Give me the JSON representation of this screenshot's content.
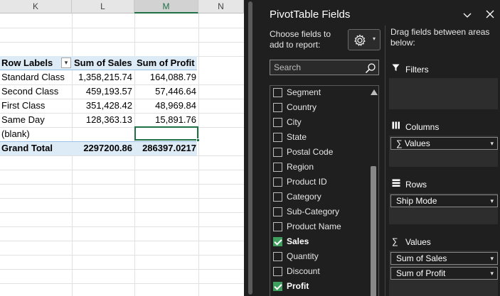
{
  "sheet": {
    "columns": [
      "K",
      "L",
      "M",
      "N"
    ],
    "selected_column": "M",
    "pivot": {
      "headers": [
        "Row Labels",
        "Sum of Sales",
        "Sum of Profit"
      ],
      "rows": [
        {
          "label": "Standard Class",
          "sales": "1,358,215.74",
          "profit": "164,088.79"
        },
        {
          "label": "Second Class",
          "sales": "459,193.57",
          "profit": "57,446.64"
        },
        {
          "label": "First Class",
          "sales": "351,428.42",
          "profit": "48,969.84"
        },
        {
          "label": "Same Day",
          "sales": "128,363.13",
          "profit": "15,891.76"
        },
        {
          "label": "(blank)",
          "sales": "",
          "profit": ""
        }
      ],
      "total": {
        "label": "Grand Total",
        "sales": "2297200.86",
        "profit": "286397.0217"
      }
    }
  },
  "pane": {
    "title": "PivotTable Fields",
    "choose_label": "Choose fields to add to report:",
    "drag_label": "Drag fields between areas below:",
    "search_placeholder": "Search",
    "fields": [
      {
        "label": "Segment",
        "checked": false
      },
      {
        "label": "Country",
        "checked": false
      },
      {
        "label": "City",
        "checked": false
      },
      {
        "label": "State",
        "checked": false
      },
      {
        "label": "Postal Code",
        "checked": false
      },
      {
        "label": "Region",
        "checked": false
      },
      {
        "label": "Product ID",
        "checked": false
      },
      {
        "label": "Category",
        "checked": false
      },
      {
        "label": "Sub-Category",
        "checked": false
      },
      {
        "label": "Product Name",
        "checked": false
      },
      {
        "label": "Sales",
        "checked": true
      },
      {
        "label": "Quantity",
        "checked": false
      },
      {
        "label": "Discount",
        "checked": false
      },
      {
        "label": "Profit",
        "checked": true
      }
    ],
    "areas": {
      "filters": {
        "label": "Filters",
        "items": []
      },
      "columns": {
        "label": "Columns",
        "items": [
          "∑ Values"
        ]
      },
      "rows": {
        "label": "Rows",
        "items": [
          "Ship Mode"
        ]
      },
      "values": {
        "label": "Values",
        "items": [
          "Sum of Sales",
          "Sum of Profit"
        ]
      }
    },
    "colors": {
      "background": "#1f1f1f",
      "check": "#3f9f5f",
      "pivot_band": "#ddebf7",
      "selection": "#1f7145"
    }
  }
}
